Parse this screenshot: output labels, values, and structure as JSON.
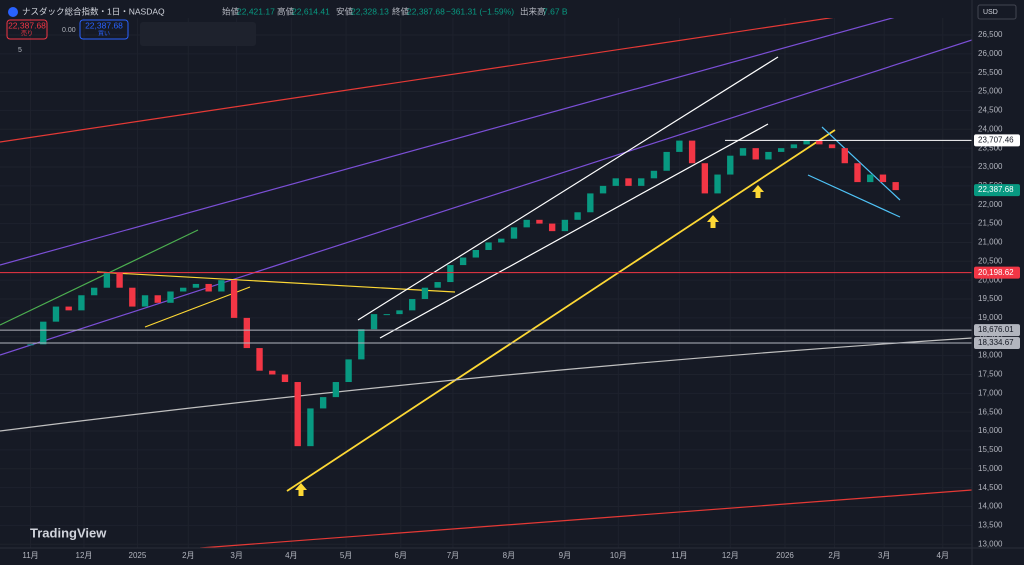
{
  "header": {
    "symbol": "ナスダック総合指数・1日・NASDAQ",
    "open_label": "始値",
    "open": "22,421.17",
    "high_label": "高値",
    "high": "22,614.41",
    "low_label": "安値",
    "low": "22,328.13",
    "close_label": "終値",
    "close": "22,387.68",
    "change": "−361.31 (−1.59%)",
    "volume_label": "出来高",
    "volume": "7.67 B",
    "sell_price": "22,387.68",
    "sell_label": "売り",
    "spread": "0.00",
    "buy_price": "22,387.68",
    "buy_label": "買い",
    "indicators": "5",
    "currency": "USD",
    "logo": "TradingView"
  },
  "chart_data": {
    "type": "candlestick",
    "up_color": "#089981",
    "down_color": "#f23645",
    "x": [
      0,
      1,
      2,
      3,
      4,
      5,
      6,
      7,
      8,
      9,
      10,
      11,
      12,
      13,
      14,
      15,
      16,
      17,
      18,
      19,
      20,
      21,
      22,
      23,
      24,
      25,
      26,
      27,
      28,
      29,
      30,
      31,
      32,
      33,
      34,
      35,
      36,
      37,
      38,
      39,
      40,
      41,
      42,
      43,
      44,
      45,
      46,
      47,
      48,
      49,
      50,
      51,
      52,
      53,
      54,
      55,
      56,
      57,
      58,
      59,
      60,
      61,
      62,
      63,
      64,
      65,
      66,
      67,
      68
    ],
    "values": [
      18300,
      18900,
      19300,
      19200,
      19600,
      19800,
      20200,
      19800,
      19300,
      19600,
      19400,
      19700,
      19800,
      19900,
      19700,
      20000,
      19000,
      18200,
      17600,
      17500,
      17300,
      15600,
      16600,
      16900,
      17300,
      17900,
      18700,
      19100,
      19100,
      19200,
      19500,
      19800,
      19950,
      20400,
      20600,
      20800,
      21000,
      21100,
      21400,
      21600,
      21500,
      21300,
      21600,
      21800,
      22300,
      22500,
      22700,
      22500,
      22700,
      22900,
      23400,
      23700,
      23100,
      22300,
      22800,
      23300,
      23500,
      23200,
      23400,
      23500,
      23600,
      23700,
      23600,
      23500,
      23100,
      22600,
      22800,
      22600,
      22387.68
    ],
    "xlim": [
      -2.4,
      74
    ],
    "ylim": [
      12900,
      26950
    ],
    "xticks": [
      {
        "value": 0,
        "label": "11月"
      },
      {
        "value": 4.2,
        "label": "12月"
      },
      {
        "value": 8.4,
        "label": "2025"
      },
      {
        "value": 12.4,
        "label": "2月"
      },
      {
        "value": 16.2,
        "label": "3月"
      },
      {
        "value": 20.5,
        "label": "4月"
      },
      {
        "value": 24.8,
        "label": "5月"
      },
      {
        "value": 29.1,
        "label": "6月"
      },
      {
        "value": 33.2,
        "label": "7月"
      },
      {
        "value": 37.6,
        "label": "8月"
      },
      {
        "value": 42,
        "label": "9月"
      },
      {
        "value": 46.2,
        "label": "10月"
      },
      {
        "value": 51,
        "label": "11月"
      },
      {
        "value": 55,
        "label": "12月"
      },
      {
        "value": 59.3,
        "label": "2026"
      },
      {
        "value": 63.2,
        "label": "2月"
      },
      {
        "value": 67.1,
        "label": "3月"
      },
      {
        "value": 71.7,
        "label": "4月"
      }
    ],
    "yticks": [
      {
        "value": 13000,
        "label": "13,000"
      },
      {
        "value": 13500,
        "label": "13,500"
      },
      {
        "value": 14000,
        "label": "14,000"
      },
      {
        "value": 14500,
        "label": "14,500"
      },
      {
        "value": 15000,
        "label": "15,000"
      },
      {
        "value": 15500,
        "label": "15,500"
      },
      {
        "value": 16000,
        "label": "16,000"
      },
      {
        "value": 16500,
        "label": "16,500"
      },
      {
        "value": 17000,
        "label": "17,000"
      },
      {
        "value": 17500,
        "label": "17,500"
      },
      {
        "value": 18000,
        "label": "18,000"
      },
      {
        "value": 18500,
        "label": "18,500"
      },
      {
        "value": 19000,
        "label": "19,000"
      },
      {
        "value": 19500,
        "label": "19,500"
      },
      {
        "value": 20000,
        "label": "20,000"
      },
      {
        "value": 20500,
        "label": "20,500"
      },
      {
        "value": 21000,
        "label": "21,000"
      },
      {
        "value": 21500,
        "label": "21,500"
      },
      {
        "value": 22000,
        "label": "22,000"
      },
      {
        "value": 22500,
        "label": "22,500"
      },
      {
        "value": 23000,
        "label": "23,000"
      },
      {
        "value": 23500,
        "label": "23,500"
      },
      {
        "value": 24000,
        "label": "24,000"
      },
      {
        "value": 24500,
        "label": "24,500"
      },
      {
        "value": 25000,
        "label": "25,000"
      },
      {
        "value": 25500,
        "label": "25,500"
      },
      {
        "value": 26000,
        "label": "26,000"
      },
      {
        "value": 26500,
        "label": "26,500"
      }
    ],
    "price_lines": [
      {
        "value": 23707.46,
        "label": "23,707.46",
        "color": "#ffffff"
      },
      {
        "value": 20198.62,
        "label": "20,198.62",
        "color": "#f23645"
      },
      {
        "value": 18676.01,
        "label": "18,676.01",
        "color": "#b2b5be"
      },
      {
        "value": 18334.67,
        "label": "18,334.67",
        "color": "#b2b5be"
      }
    ],
    "last_price": {
      "value": 22387.68,
      "label": "22,387.68",
      "color": "#089981"
    }
  }
}
